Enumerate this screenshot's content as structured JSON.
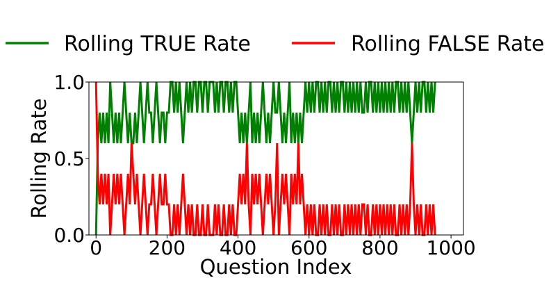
{
  "chart_data": {
    "type": "line",
    "title": "",
    "xlabel": "Question Index",
    "ylabel": "Rolling Rate",
    "xlim": [
      -20,
      1035
    ],
    "ylim": [
      0.0,
      1.0
    ],
    "x_ticks": [
      0,
      200,
      400,
      600,
      800,
      1000
    ],
    "x_tick_labels": [
      "0",
      "200",
      "400",
      "600",
      "800",
      "1000"
    ],
    "y_ticks": [
      0.0,
      0.5,
      1.0
    ],
    "y_tick_labels": [
      "0.0",
      "0.5",
      "1.0"
    ],
    "grid": false,
    "legend_placement": "top, outside plot",
    "x_start": 0,
    "x_step": 5,
    "series": [
      {
        "name": "Rolling TRUE Rate",
        "color": "#008000",
        "values": [
          0.0,
          0.6,
          0.8,
          0.6,
          0.8,
          0.6,
          0.8,
          0.6,
          1.0,
          0.8,
          0.6,
          0.8,
          0.6,
          0.8,
          0.6,
          0.8,
          1.0,
          0.8,
          0.6,
          0.8,
          0.6,
          0.6,
          0.8,
          0.6,
          0.8,
          1.0,
          0.8,
          0.6,
          0.8,
          1.0,
          0.8,
          0.8,
          0.6,
          0.8,
          1.0,
          0.8,
          0.6,
          0.8,
          0.8,
          0.6,
          0.8,
          0.8,
          1.0,
          1.0,
          0.8,
          1.0,
          0.8,
          1.0,
          0.8,
          0.6,
          0.8,
          1.0,
          0.8,
          1.0,
          0.8,
          1.0,
          1.0,
          0.8,
          1.0,
          1.0,
          0.8,
          1.0,
          1.0,
          0.8,
          1.0,
          1.0,
          1.0,
          0.8,
          1.0,
          0.8,
          1.0,
          1.0,
          0.8,
          1.0,
          1.0,
          0.8,
          1.0,
          0.8,
          1.0,
          1.0,
          0.8,
          0.6,
          0.8,
          0.6,
          0.8,
          0.6,
          0.8,
          1.0,
          0.6,
          0.8,
          0.6,
          0.8,
          0.6,
          0.8,
          1.0,
          0.8,
          0.6,
          0.8,
          0.6,
          0.8,
          1.0,
          0.8,
          0.8,
          1.0,
          0.8,
          0.6,
          0.8,
          0.6,
          0.8,
          1.0,
          0.6,
          0.8,
          0.6,
          0.8,
          0.6,
          0.8,
          0.6,
          0.8,
          1.0,
          0.8,
          1.0,
          0.8,
          1.0,
          0.8,
          1.0,
          1.0,
          0.8,
          1.0,
          0.8,
          1.0,
          0.8,
          1.0,
          1.0,
          0.8,
          1.0,
          0.8,
          1.0,
          0.8,
          1.0,
          1.0,
          0.8,
          1.0,
          0.8,
          1.0,
          0.8,
          1.0,
          0.8,
          1.0,
          0.8,
          1.0,
          0.8,
          0.8,
          1.0,
          0.8,
          1.0,
          1.0,
          0.8,
          1.0,
          0.8,
          1.0,
          0.8,
          1.0,
          0.8,
          1.0,
          0.8,
          1.0,
          0.8,
          1.0,
          0.8,
          1.0,
          1.0,
          0.8,
          1.0,
          0.8,
          1.0,
          0.8,
          1.0,
          0.8,
          0.6,
          0.8,
          1.0,
          0.8,
          1.0,
          0.8,
          1.0,
          1.0,
          0.8,
          1.0,
          0.8,
          1.0,
          0.8,
          1.0
        ]
      },
      {
        "name": "Rolling FALSE Rate",
        "color": "#ff0000",
        "values": [
          1.0,
          0.4,
          0.2,
          0.4,
          0.2,
          0.4,
          0.2,
          0.4,
          0.0,
          0.2,
          0.4,
          0.2,
          0.4,
          0.2,
          0.4,
          0.2,
          0.0,
          0.2,
          0.4,
          0.2,
          0.6,
          0.4,
          0.2,
          0.4,
          0.2,
          0.0,
          0.2,
          0.4,
          0.2,
          0.0,
          0.2,
          0.2,
          0.4,
          0.2,
          0.0,
          0.2,
          0.4,
          0.2,
          0.2,
          0.4,
          0.2,
          0.2,
          0.0,
          0.0,
          0.2,
          0.0,
          0.2,
          0.0,
          0.2,
          0.4,
          0.2,
          0.0,
          0.2,
          0.0,
          0.2,
          0.0,
          0.0,
          0.2,
          0.0,
          0.0,
          0.2,
          0.0,
          0.0,
          0.2,
          0.0,
          0.0,
          0.0,
          0.2,
          0.0,
          0.2,
          0.0,
          0.0,
          0.2,
          0.0,
          0.0,
          0.2,
          0.0,
          0.2,
          0.0,
          0.0,
          0.2,
          0.4,
          0.2,
          0.4,
          0.2,
          0.6,
          0.2,
          0.0,
          0.4,
          0.2,
          0.4,
          0.2,
          0.4,
          0.2,
          0.0,
          0.2,
          0.4,
          0.2,
          0.4,
          0.2,
          0.0,
          0.2,
          0.6,
          0.0,
          0.2,
          0.4,
          0.2,
          0.4,
          0.2,
          0.0,
          0.4,
          0.2,
          0.4,
          0.2,
          0.6,
          0.2,
          0.4,
          0.2,
          0.0,
          0.2,
          0.0,
          0.2,
          0.0,
          0.2,
          0.0,
          0.0,
          0.2,
          0.0,
          0.2,
          0.0,
          0.2,
          0.0,
          0.0,
          0.2,
          0.0,
          0.2,
          0.0,
          0.2,
          0.0,
          0.0,
          0.2,
          0.0,
          0.2,
          0.0,
          0.2,
          0.0,
          0.2,
          0.0,
          0.2,
          0.0,
          0.2,
          0.2,
          0.0,
          0.2,
          0.0,
          0.0,
          0.2,
          0.0,
          0.2,
          0.0,
          0.2,
          0.0,
          0.2,
          0.0,
          0.2,
          0.0,
          0.2,
          0.0,
          0.2,
          0.0,
          0.0,
          0.2,
          0.0,
          0.2,
          0.0,
          0.2,
          0.0,
          0.2,
          0.6,
          0.2,
          0.0,
          0.2,
          0.0,
          0.2,
          0.0,
          0.0,
          0.2,
          0.0,
          0.2,
          0.0,
          0.2,
          0.0
        ]
      }
    ]
  }
}
